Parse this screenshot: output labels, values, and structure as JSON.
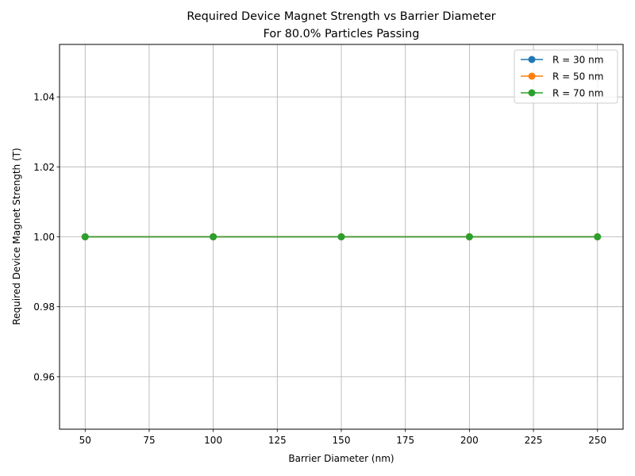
{
  "chart_data": {
    "type": "line",
    "title": "Required Device Magnet Strength vs Barrier Diameter",
    "subtitle": "For 80.0% Particles Passing",
    "xlabel": "Barrier Diameter (nm)",
    "ylabel": "Required Device Magnet Strength (T)",
    "xlim": [
      40,
      260
    ],
    "ylim": [
      0.945,
      1.055
    ],
    "xticks": [
      "50",
      "75",
      "100",
      "125",
      "150",
      "175",
      "200",
      "225",
      "250"
    ],
    "yticks": [
      "0.96",
      "0.98",
      "1.00",
      "1.02",
      "1.04"
    ],
    "grid": true,
    "legend_position": "top-right",
    "x": [
      50,
      100,
      150,
      200,
      250
    ],
    "series": [
      {
        "name": "R = 30 nm",
        "color": "#1f77b4",
        "values": [
          1.0,
          1.0,
          1.0,
          1.0,
          1.0
        ]
      },
      {
        "name": "R = 50 nm",
        "color": "#ff7f0e",
        "values": [
          1.0,
          1.0,
          1.0,
          1.0,
          1.0
        ]
      },
      {
        "name": "R = 70 nm",
        "color": "#2ca02c",
        "values": [
          1.0,
          1.0,
          1.0,
          1.0,
          1.0
        ]
      }
    ]
  }
}
